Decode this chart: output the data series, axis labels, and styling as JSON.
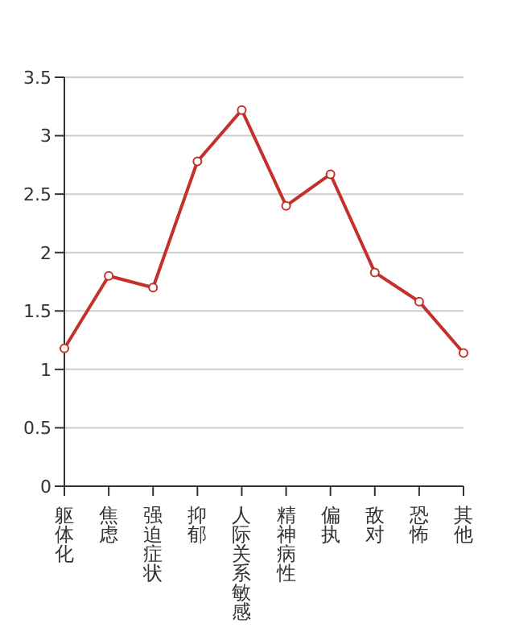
{
  "chart_data": {
    "type": "line",
    "categories": [
      "躯体化",
      "焦虑",
      "强迫症状",
      "抑郁",
      "人际关系敏感",
      "精神病性",
      "偏执",
      "敌对",
      "恐怖",
      "其他"
    ],
    "series": [
      {
        "color": "#c4302b",
        "values": [
          1.18,
          1.8,
          1.7,
          2.78,
          3.22,
          2.4,
          2.67,
          1.83,
          1.58,
          1.14
        ]
      }
    ],
    "ylim": [
      0,
      3.5
    ],
    "yticks": [
      0,
      0.5,
      1,
      1.5,
      2,
      2.5,
      3,
      3.5
    ],
    "grid": "y",
    "marker": "circle",
    "legend": false
  }
}
